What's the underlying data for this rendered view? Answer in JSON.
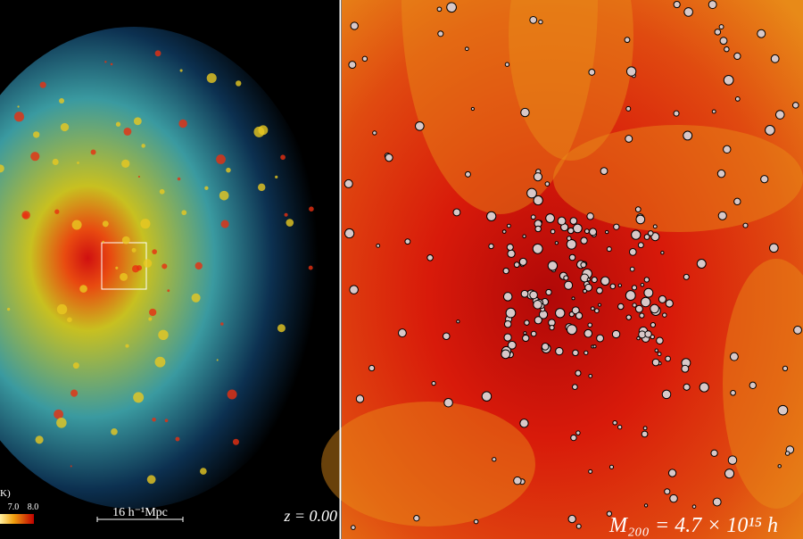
{
  "left_panel": {
    "colorbar": {
      "label": "K)",
      "ticks": [
        "7.0",
        "8.0"
      ]
    },
    "scale_bar": "16 h⁻¹Mpc",
    "redshift": "z = 0.00"
  },
  "right_panel": {
    "mass_label": "M₂₀₀ = 4.7 × 10¹⁵ h"
  }
}
